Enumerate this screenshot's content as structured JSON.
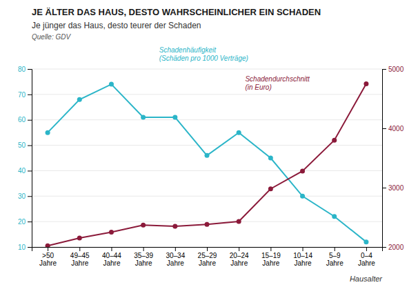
{
  "chart_data": {
    "type": "line",
    "title": "JE ÄLTER DAS HAUS, DESTO WAHRSCHEINLICHER EIN SCHADEN",
    "subtitle": "Je jünger das Haus, desto teurer der Schaden",
    "annotations": [
      "Quelle: GDV"
    ],
    "xlabel": "Hausalter",
    "categories": [
      ">50\nJahre",
      "49–45\nJahre",
      "40–44\nJahre",
      "35–39\nJahre",
      "30–34\nJahre",
      "25–29\nJahre",
      "20–24\nJahre",
      "15–19\nJahre",
      "10–14\nJahre",
      "5–9\nJahre",
      "0–4\nJahre"
    ],
    "series": [
      {
        "name": "Schadenhäufigkeit\n(Schäden pro 1000 Verträge)",
        "color": "#2BB5C8",
        "marker": "circle",
        "values": [
          55,
          68,
          74,
          61,
          61,
          46,
          55,
          45,
          30,
          22,
          12
        ]
      },
      {
        "name": "Schadendurchschnitt\n(in Euro)",
        "color": "#8B1A3A",
        "marker": "circle",
        "axis": "y2",
        "values": [
          2020,
          2150,
          2250,
          2370,
          2350,
          2380,
          2430,
          2980,
          3280,
          3800,
          4750
        ]
      }
    ],
    "ylim": [
      10,
      80
    ],
    "yticks": [
      10,
      20,
      30,
      40,
      50,
      60,
      70,
      80
    ],
    "y2lim": [
      2000,
      5000
    ],
    "y2ticks": [
      2000,
      3000,
      4000,
      5000
    ],
    "grid": true
  }
}
